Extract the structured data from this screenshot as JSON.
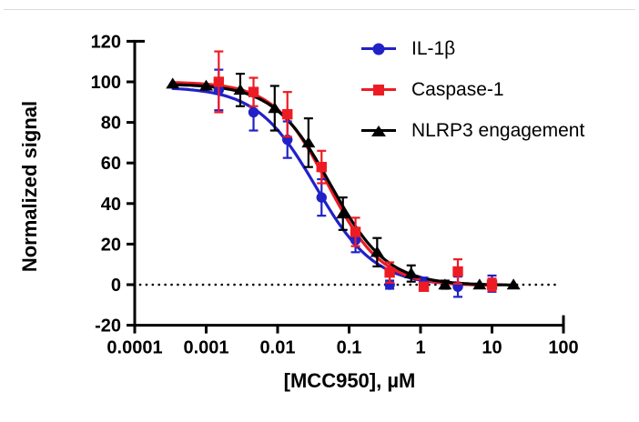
{
  "figure": {
    "description": "Dose-response inhibition curves for MCC950"
  },
  "chart_data": {
    "type": "scatter",
    "subtype": "dose-response-log-inhibitor",
    "title": "",
    "xlabel": "[MCC950], µM",
    "ylabel": "Normalized signal",
    "x_scale": "log",
    "xlim": [
      0.0001,
      100
    ],
    "ylim": [
      -20,
      120
    ],
    "grid": false,
    "legend_position": "top-right-inside",
    "zero_line": {
      "y": 0,
      "style": "dotted",
      "color": "#000000"
    },
    "x_ticks": {
      "values": [
        0.0001,
        0.001,
        0.01,
        0.1,
        1,
        10,
        100
      ],
      "labels": [
        "0.0001",
        "0.001",
        "0.01",
        "0.1",
        "1",
        "10",
        "100"
      ]
    },
    "y_ticks": {
      "values": [
        -20,
        0,
        20,
        40,
        60,
        80,
        100,
        120
      ],
      "labels": [
        "-20",
        "0",
        "20",
        "40",
        "60",
        "80",
        "100",
        "120"
      ]
    },
    "series": [
      {
        "name": "IL-1β",
        "color": "#2121C8",
        "marker": "circle",
        "x": [
          0.0015,
          0.0046,
          0.0137,
          0.0412,
          0.123,
          0.37,
          1.11,
          3.33,
          10
        ],
        "y": [
          96,
          85,
          71.5,
          43,
          22,
          0,
          0.5,
          -1,
          0.5
        ],
        "err": [
          10,
          9,
          9,
          9,
          6,
          2,
          3,
          5,
          4
        ],
        "fit": {
          "top": 97.5,
          "bottom": -0.5,
          "ic50": 0.034,
          "hill": 1.05
        },
        "fit_range": [
          0.00033,
          10
        ]
      },
      {
        "name": "Caspase-1",
        "color": "#ED1C24",
        "marker": "square",
        "x": [
          0.0015,
          0.0046,
          0.0137,
          0.0412,
          0.123,
          0.37,
          1.11,
          3.33,
          10
        ],
        "y": [
          100,
          95,
          84,
          58,
          26,
          6,
          -1,
          6.5,
          0
        ],
        "err": [
          15,
          7,
          11,
          8,
          7,
          5,
          2,
          6,
          3
        ],
        "fit": {
          "top": 100,
          "bottom": -0.5,
          "ic50": 0.05,
          "hill": 1.15
        },
        "fit_range": [
          0.00033,
          10
        ]
      },
      {
        "name": "NLRP3 engagement",
        "color": "#000000",
        "marker": "triangle",
        "x": [
          0.00034,
          0.001,
          0.003,
          0.0091,
          0.027,
          0.082,
          0.247,
          0.74,
          2.2,
          6.7,
          20
        ],
        "y": [
          99,
          98,
          96,
          87,
          70,
          35,
          16,
          5.5,
          0,
          0,
          0
        ],
        "err": [
          1,
          1,
          8,
          11,
          12,
          8,
          7,
          4,
          2,
          1,
          1
        ],
        "fit": {
          "top": 99,
          "bottom": -0.3,
          "ic50": 0.055,
          "hill": 1.1
        },
        "fit_range": [
          0.00033,
          20
        ]
      }
    ]
  }
}
